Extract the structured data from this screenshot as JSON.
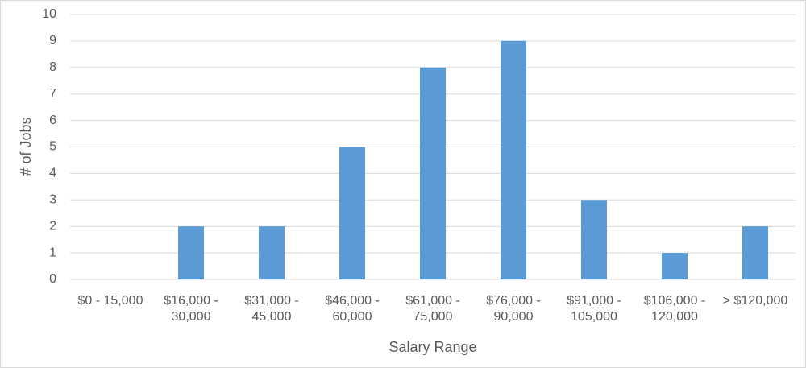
{
  "chart_data": {
    "type": "bar",
    "x_label": "Salary Range",
    "y_label": "# of Jobs",
    "categories": [
      "$0 - 15,000",
      "$16,000 - 30,000",
      "$31,000 - 45,000",
      "$46,000 - 60,000",
      "$61,000 - 75,000",
      "$76,000 - 90,000",
      "$91,000 - 105,000",
      "$106,000 - 120,000",
      "> $120,000"
    ],
    "values": [
      0,
      2,
      2,
      5,
      8,
      9,
      3,
      1,
      2
    ],
    "color": "#5b9bd5",
    "ylim": [
      0,
      10
    ],
    "yticks": [
      0,
      1,
      2,
      3,
      4,
      5,
      6,
      7,
      8,
      9,
      10
    ],
    "grid": true
  }
}
